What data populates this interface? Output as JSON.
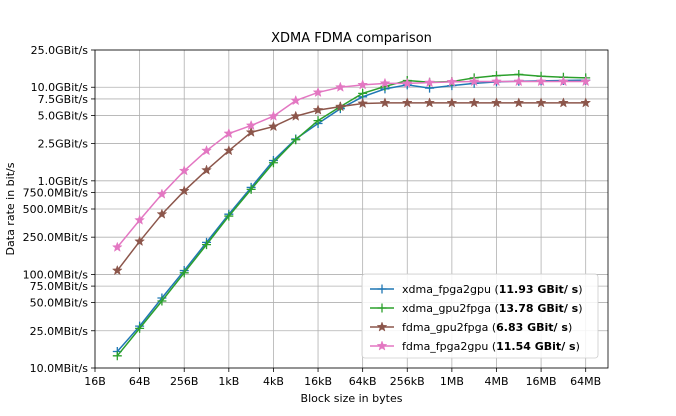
{
  "chart_data": {
    "type": "line",
    "title": "XDMA FDMA comparison",
    "xlabel": "Block size in bytes",
    "ylabel": "Data rate in bit/s",
    "x_scale": "log2",
    "y_scale": "log10",
    "xlim_bytes": [
      16,
      134217728
    ],
    "ylim_bits_per_s": [
      10000000,
      25000000000
    ],
    "grid": true,
    "legend_position": "lower-right",
    "x_ticks": [
      {
        "value": 16,
        "label": "16B"
      },
      {
        "value": 64,
        "label": "64B"
      },
      {
        "value": 256,
        "label": "256B"
      },
      {
        "value": 1024,
        "label": "1kB"
      },
      {
        "value": 4096,
        "label": "4kB"
      },
      {
        "value": 16384,
        "label": "16kB"
      },
      {
        "value": 65536,
        "label": "64kB"
      },
      {
        "value": 262144,
        "label": "256kB"
      },
      {
        "value": 1048576,
        "label": "1MB"
      },
      {
        "value": 4194304,
        "label": "4MB"
      },
      {
        "value": 16777216,
        "label": "16MB"
      },
      {
        "value": 67108864,
        "label": "64MB"
      }
    ],
    "y_ticks": [
      {
        "value": 25000000000,
        "label": "25.0GBit/s"
      },
      {
        "value": 10000000000,
        "label": "10.0GBit/s"
      },
      {
        "value": 7500000000,
        "label": "7.5GBit/s"
      },
      {
        "value": 5000000000,
        "label": "5.0GBit/s"
      },
      {
        "value": 2500000000,
        "label": "2.5GBit/s"
      },
      {
        "value": 1000000000,
        "label": "1.0GBit/s"
      },
      {
        "value": 750000000,
        "label": "750.0MBit/s"
      },
      {
        "value": 500000000,
        "label": "500.0MBit/s"
      },
      {
        "value": 250000000,
        "label": "250.0MBit/s"
      },
      {
        "value": 100000000,
        "label": "100.0MBit/s"
      },
      {
        "value": 75000000,
        "label": "75.0MBit/s"
      },
      {
        "value": 50000000,
        "label": "50.0MBit/s"
      },
      {
        "value": 25000000,
        "label": "25.0MBit/s"
      },
      {
        "value": 10000000,
        "label": "10.0MBit/s"
      }
    ],
    "x": [
      32,
      64,
      128,
      256,
      512,
      1024,
      2048,
      4096,
      8192,
      16384,
      32768,
      65536,
      131072,
      262144,
      524288,
      1048576,
      2097152,
      4194304,
      8388608,
      16777216,
      33554432,
      67108864
    ],
    "series": [
      {
        "name": "xdma_fpga2gpu",
        "legend_prefix": "xdma_fpga2gpu (",
        "legend_value": "11.93 GBit/ s",
        "legend_suffix": ")",
        "color": "#1f77b4",
        "marker": "plus",
        "values": [
          15000000,
          28000000,
          56000000,
          110000000,
          220000000,
          440000000,
          850000000,
          1650000000,
          2800000000,
          4100000000,
          5900000000,
          7900000000,
          9600000000,
          10600000000,
          9800000000,
          10400000000,
          11000000000,
          11400000000,
          11600000000,
          11700000000,
          11800000000,
          11900000000
        ]
      },
      {
        "name": "xdma_gpu2fpga",
        "legend_prefix": "xdma_gpu2fpga (",
        "legend_value": "13.78 GBit/ s",
        "legend_suffix": ")",
        "color": "#2ca02c",
        "marker": "plus",
        "values": [
          13500000,
          26500000,
          52000000,
          104000000,
          208000000,
          420000000,
          810000000,
          1560000000,
          2750000000,
          4400000000,
          6200000000,
          8600000000,
          10200000000,
          11800000000,
          11300000000,
          11500000000,
          12600000000,
          13300000000,
          13700000000,
          13100000000,
          12800000000,
          12600000000
        ]
      },
      {
        "name": "fdma_gpu2fpga",
        "legend_prefix": "fdma_gpu2fpga (",
        "legend_value": "6.83 GBit/ s",
        "legend_suffix": ")",
        "color": "#8c564b",
        "marker": "star",
        "values": [
          110000000,
          225000000,
          440000000,
          780000000,
          1300000000,
          2100000000,
          3300000000,
          3800000000,
          4900000000,
          5700000000,
          6200000000,
          6700000000,
          6800000000,
          6800000000,
          6800000000,
          6800000000,
          6800000000,
          6800000000,
          6800000000,
          6800000000,
          6800000000,
          6800000000
        ]
      },
      {
        "name": "fdma_fpga2gpu",
        "legend_prefix": "fdma_fpga2gpu (",
        "legend_value": "11.54 GBit/ s",
        "legend_suffix": ")",
        "color": "#e377c2",
        "marker": "star",
        "values": [
          195000000,
          380000000,
          720000000,
          1280000000,
          2100000000,
          3200000000,
          3900000000,
          4900000000,
          7200000000,
          8800000000,
          10000000000,
          10600000000,
          11000000000,
          11000000000,
          11200000000,
          11400000000,
          11500000000,
          11500000000,
          11500000000,
          11500000000,
          11500000000,
          11500000000
        ]
      }
    ]
  }
}
